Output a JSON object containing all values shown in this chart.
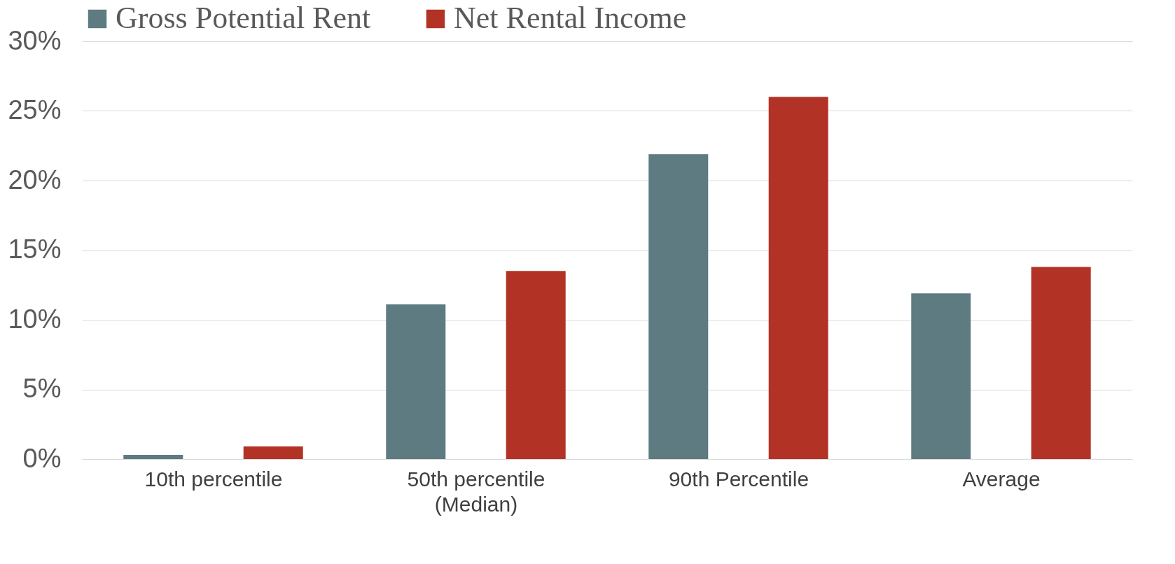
{
  "chart_data": {
    "type": "bar",
    "categories": [
      "10th percentile",
      "50th percentile (Median)",
      "90th Percentile",
      "Average"
    ],
    "series": [
      {
        "name": "Gross Potential Rent",
        "color": "#5d7b80",
        "values": [
          0.3,
          11.1,
          21.9,
          11.9
        ]
      },
      {
        "name": "Net Rental Income",
        "color": "#b33226",
        "values": [
          0.9,
          13.5,
          26.0,
          13.8
        ]
      }
    ],
    "ylim": [
      0,
      30
    ],
    "yticks": [
      {
        "value": 0,
        "label": "0%"
      },
      {
        "value": 5,
        "label": "5%"
      },
      {
        "value": 10,
        "label": "10%"
      },
      {
        "value": 15,
        "label": "15%"
      },
      {
        "value": 20,
        "label": "20%"
      },
      {
        "value": 25,
        "label": "25%"
      },
      {
        "value": 30,
        "label": "30%"
      }
    ],
    "grid": "y",
    "legend": "top"
  }
}
